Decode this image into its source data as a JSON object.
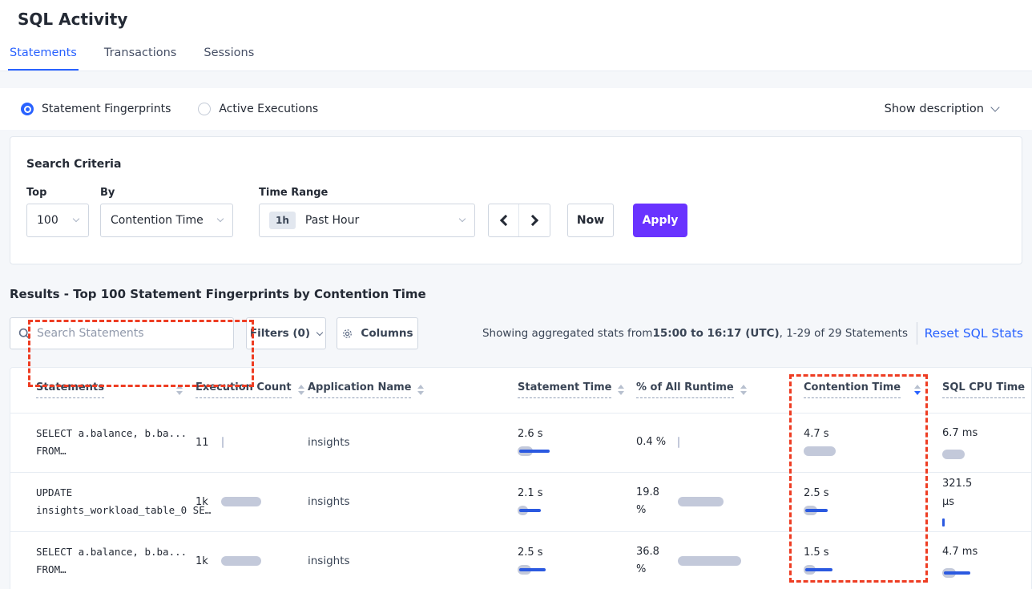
{
  "page": {
    "title": "SQL Activity"
  },
  "tabs": {
    "items": [
      {
        "label": "Statements",
        "active": true
      },
      {
        "label": "Transactions",
        "active": false
      },
      {
        "label": "Sessions",
        "active": false
      }
    ]
  },
  "view_bar": {
    "radios": [
      {
        "label": "Statement Fingerprints",
        "selected": true
      },
      {
        "label": "Active Executions",
        "selected": false
      }
    ],
    "show_description_label": "Show description"
  },
  "search_criteria": {
    "title": "Search Criteria",
    "top_label": "Top",
    "top_value": "100",
    "by_label": "By",
    "by_value": "Contention Time",
    "time_range_label": "Time Range",
    "time_range_badge": "1h",
    "time_range_value": "Past Hour",
    "now_label": "Now",
    "apply_label": "Apply"
  },
  "results": {
    "heading": "Results - Top 100 Statement Fingerprints by Contention Time",
    "search_placeholder": "Search Statements",
    "filters_label": "Filters (0)",
    "columns_label": "Columns",
    "stats_prefix": "Showing aggregated stats from ",
    "stats_range": "15:00 to 16:17 (UTC)",
    "stats_suffix": ", 1-29 of 29 Statements",
    "reset_label": "Reset SQL Stats"
  },
  "table": {
    "columns": [
      {
        "label": "Statements",
        "sort": "none"
      },
      {
        "label": "Execution Count",
        "sort": "none"
      },
      {
        "label": "Application Name",
        "sort": "none"
      },
      {
        "label": "Statement Time",
        "sort": "none"
      },
      {
        "label": "% of All Runtime",
        "sort": "none"
      },
      {
        "label": "Contention Time",
        "sort": "desc"
      },
      {
        "label": "SQL CPU Time",
        "sort": "hidden"
      }
    ],
    "rows": [
      {
        "statement_line1": "SELECT a.balance, b.ba...",
        "statement_line2": "FROM…",
        "app": "insights",
        "exec": {
          "text": "11",
          "gray": 2,
          "blue": 0,
          "tick": true
        },
        "stmt_time": {
          "text": "2.6 s",
          "gray": 19,
          "blue": 38
        },
        "pct": {
          "text": "0.4 %",
          "gray": 2,
          "blue": 0,
          "tick": true
        },
        "contention": {
          "text": "4.7 s",
          "gray": 40,
          "blue": 0
        },
        "cpu": {
          "text": "6.7 ms",
          "gray": 28,
          "blue": 0
        }
      },
      {
        "statement_line1": "UPDATE",
        "statement_line2": "insights_workload_table_0 SE…",
        "app": "insights",
        "exec": {
          "text": "1k",
          "gray": 50,
          "blue": 0
        },
        "stmt_time": {
          "text": "2.1 s",
          "gray": 13,
          "blue": 27
        },
        "pct": {
          "text": "19.8 %",
          "gray": 57,
          "blue": 0
        },
        "contention": {
          "text": "2.5 s",
          "gray": 17,
          "blue": 28
        },
        "cpu": {
          "text": "321.5 µs",
          "gray": 0,
          "blue": 3,
          "tick": true
        }
      },
      {
        "statement_line1": "SELECT a.balance, b.ba...",
        "statement_line2": "FROM…",
        "app": "insights",
        "exec": {
          "text": "1k",
          "gray": 50,
          "blue": 0
        },
        "stmt_time": {
          "text": "2.5 s",
          "gray": 17,
          "blue": 33
        },
        "pct": {
          "text": "36.8 %",
          "gray": 79,
          "blue": 0
        },
        "contention": {
          "text": "1.5 s",
          "gray": 15,
          "blue": 34
        },
        "cpu": {
          "text": "4.7 ms",
          "gray": 17,
          "blue": 33
        }
      }
    ]
  },
  "colors": {
    "accent_blue": "#2962ff",
    "apply_purple": "#6933ff",
    "annotation_red": "#ee3d23",
    "bar_gray": "#c3c9da",
    "bar_blue": "#2b59e0",
    "link_blue": "#2962ff",
    "text_dark": "#242a35",
    "text_body": "#394455",
    "border": "#e2e7ee",
    "bg_gray": "#f5f7fa"
  }
}
